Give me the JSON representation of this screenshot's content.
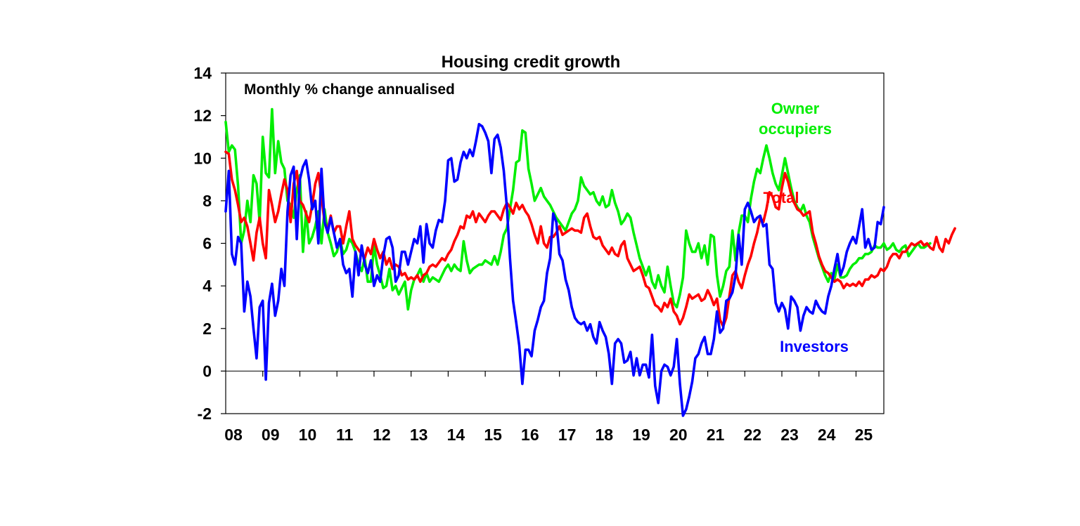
{
  "chart_data": {
    "type": "line",
    "title": "Housing credit growth",
    "subtitle": "Monthly % change annualised",
    "xlabel": "",
    "ylabel": "",
    "x_tick_labels": [
      "08",
      "09",
      "10",
      "11",
      "12",
      "13",
      "14",
      "15",
      "16",
      "17",
      "18",
      "19",
      "20",
      "21",
      "22",
      "23",
      "24",
      "25"
    ],
    "y_tick_labels": [
      "-2",
      "0",
      "2",
      "4",
      "6",
      "8",
      "10",
      "12",
      "14"
    ],
    "y_ticks": [
      -2,
      0,
      2,
      4,
      6,
      8,
      10,
      12,
      14
    ],
    "ylim": [
      -2,
      14
    ],
    "xlim": [
      2008.0,
      2025.75
    ],
    "grid": false,
    "series": [
      {
        "name": "Owner occupiers",
        "label_text": [
          "Owner",
          "occupiers"
        ],
        "color": "#00ee00",
        "x_start": 2008.0,
        "x_step": 0.0833333,
        "values": [
          11.7,
          10.3,
          10.6,
          10.4,
          8.7,
          6.0,
          6.6,
          8.0,
          7.0,
          9.2,
          8.8,
          7.0,
          11.0,
          9.3,
          9.1,
          12.3,
          9.3,
          10.8,
          9.8,
          9.5,
          8.0,
          7.8,
          7.2,
          8.5,
          9.2,
          5.6,
          7.5,
          6.0,
          6.3,
          6.8,
          7.5,
          6.0,
          7.6,
          6.5,
          6.0,
          5.4,
          5.6,
          6.2,
          5.5,
          5.7,
          6.2,
          6.0,
          5.6,
          5.0,
          4.7,
          5.3,
          4.2,
          4.2,
          5.9,
          5.0,
          4.5,
          3.9,
          4.0,
          4.8,
          3.8,
          4.0,
          3.6,
          3.9,
          4.2,
          2.9,
          3.8,
          4.3,
          4.5,
          4.8,
          4.2,
          4.6,
          4.2,
          4.4,
          4.3,
          4.2,
          4.5,
          4.8,
          5.0,
          4.7,
          5.0,
          4.8,
          4.7,
          6.1,
          5.2,
          4.6,
          4.8,
          4.9,
          5.0,
          5.0,
          5.2,
          5.1,
          5.0,
          5.4,
          5.0,
          5.6,
          6.4,
          6.7,
          7.6,
          8.5,
          9.8,
          9.9,
          11.3,
          11.2,
          9.5,
          8.8,
          8.0,
          8.3,
          8.6,
          8.2,
          8.0,
          7.8,
          7.5,
          7.2,
          7.0,
          6.8,
          6.6,
          7.0,
          7.4,
          7.6,
          8.0,
          9.1,
          8.7,
          8.5,
          8.3,
          8.4,
          8.0,
          7.8,
          8.2,
          7.7,
          7.8,
          8.5,
          7.9,
          7.5,
          6.9,
          7.1,
          7.4,
          7.2,
          6.5,
          5.9,
          5.3,
          4.9,
          4.5,
          4.9,
          4.2,
          3.9,
          4.5,
          4.0,
          3.7,
          4.9,
          4.0,
          3.2,
          3.0,
          3.6,
          4.4,
          6.6,
          6.0,
          5.6,
          5.6,
          6.0,
          5.3,
          5.9,
          5.0,
          6.4,
          6.3,
          4.5,
          3.5,
          4.0,
          4.7,
          4.9,
          6.6,
          5.2,
          6.5,
          7.3,
          7.3,
          7.0,
          8.1,
          8.9,
          9.5,
          9.3,
          10.0,
          10.6,
          10.0,
          9.3,
          8.8,
          8.5,
          9.2,
          10.0,
          9.3,
          8.6,
          8.0,
          7.7,
          7.5,
          7.8,
          7.3,
          7.0,
          6.3,
          5.8,
          5.3,
          4.9,
          4.5,
          4.2,
          4.6,
          4.3,
          5.0,
          4.4,
          4.4,
          4.5,
          4.8,
          5.0,
          5.1,
          5.3,
          5.3,
          5.5,
          5.5,
          5.6,
          5.9,
          5.8,
          5.8,
          6.0,
          5.7,
          5.8,
          6.0,
          5.7,
          5.6,
          5.8,
          5.9,
          5.4,
          5.6,
          5.8,
          6.0,
          5.8,
          5.8,
          5.9,
          6.0
        ]
      },
      {
        "name": "Total",
        "label_text": [
          "Total"
        ],
        "color": "#ff0000",
        "x_start": 2008.0,
        "x_step": 0.0833333,
        "values": [
          10.3,
          10.2,
          9.0,
          8.5,
          7.8,
          7.0,
          7.2,
          6.8,
          6.0,
          5.2,
          6.5,
          7.2,
          6.0,
          5.3,
          8.5,
          7.8,
          7.0,
          7.5,
          8.3,
          9.0,
          8.5,
          7.0,
          8.8,
          9.4,
          8.0,
          7.8,
          7.4,
          7.0,
          7.8,
          8.8,
          9.3,
          8.2,
          7.0,
          6.6,
          7.3,
          6.5,
          6.8,
          6.8,
          6.0,
          6.8,
          7.5,
          6.2,
          5.9,
          5.7,
          5.5,
          5.3,
          5.8,
          5.5,
          6.2,
          5.7,
          5.3,
          5.6,
          5.0,
          5.3,
          4.8,
          5.0,
          4.9,
          4.5,
          4.6,
          4.3,
          4.4,
          4.3,
          4.5,
          4.2,
          4.5,
          4.6,
          4.9,
          5.0,
          4.9,
          5.1,
          5.3,
          5.2,
          5.5,
          5.7,
          6.1,
          6.4,
          6.8,
          6.7,
          7.3,
          7.2,
          7.5,
          7.0,
          7.4,
          7.2,
          7.0,
          7.3,
          7.5,
          7.5,
          7.3,
          7.1,
          7.6,
          7.9,
          7.7,
          7.4,
          7.9,
          7.6,
          7.8,
          7.5,
          7.3,
          6.9,
          6.4,
          6.0,
          6.8,
          6.0,
          5.8,
          6.3,
          6.3,
          6.5,
          6.8,
          6.4,
          6.5,
          6.6,
          6.7,
          6.6,
          6.6,
          6.5,
          7.2,
          7.4,
          6.8,
          6.3,
          6.2,
          6.3,
          5.9,
          5.7,
          5.5,
          5.8,
          5.5,
          5.4,
          5.9,
          6.1,
          5.3,
          5.0,
          4.7,
          4.8,
          4.9,
          4.5,
          4.0,
          3.9,
          3.5,
          3.1,
          3.0,
          2.8,
          3.2,
          3.0,
          3.4,
          2.8,
          2.6,
          2.2,
          2.5,
          3.0,
          3.6,
          3.4,
          3.5,
          3.6,
          3.3,
          3.4,
          3.8,
          3.5,
          3.1,
          3.4,
          2.4,
          2.1,
          2.5,
          3.5,
          4.5,
          4.7,
          4.2,
          3.9,
          4.5,
          5.0,
          5.4,
          6.0,
          6.5,
          7.2,
          7.0,
          7.6,
          8.4,
          8.2,
          7.7,
          7.6,
          8.6,
          9.3,
          8.9,
          8.3,
          7.9,
          7.6,
          7.5,
          7.3,
          7.4,
          7.5,
          6.5,
          6.0,
          5.4,
          5.0,
          4.7,
          4.6,
          4.4,
          4.2,
          4.3,
          4.2,
          3.9,
          4.1,
          4.0,
          4.1,
          4.0,
          4.2,
          4.0,
          4.3,
          4.3,
          4.5,
          4.4,
          4.5,
          4.8,
          4.7,
          4.9,
          5.3,
          5.5,
          5.5,
          5.3,
          5.6,
          5.6,
          5.8,
          6.0,
          5.9,
          6.0,
          6.1,
          5.9,
          6.0,
          5.8,
          5.7,
          6.3,
          5.8,
          5.6,
          6.2,
          6.0,
          6.4,
          6.7
        ]
      },
      {
        "name": "Investors",
        "label_text": [
          "Investors"
        ],
        "color": "#0000ff",
        "x_start": 2008.0,
        "x_step": 0.0833333,
        "values": [
          7.5,
          9.4,
          5.5,
          5.0,
          6.3,
          6.0,
          2.8,
          4.2,
          3.5,
          2.0,
          0.6,
          3.0,
          3.3,
          -0.4,
          3.2,
          4.1,
          2.6,
          3.3,
          4.8,
          4.0,
          7.5,
          9.2,
          9.6,
          6.2,
          9.0,
          9.6,
          9.9,
          9.0,
          7.6,
          8.0,
          6.0,
          9.5,
          7.0,
          6.5,
          7.2,
          6.5,
          5.8,
          6.2,
          5.0,
          4.6,
          4.8,
          3.5,
          5.6,
          4.5,
          5.9,
          5.0,
          4.6,
          5.2,
          4.0,
          4.5,
          4.2,
          5.4,
          6.2,
          6.3,
          5.8,
          4.2,
          4.5,
          5.6,
          5.6,
          5.0,
          5.6,
          6.2,
          6.0,
          6.8,
          5.1,
          6.9,
          6.0,
          5.8,
          6.6,
          7.1,
          7.0,
          8.0,
          9.9,
          10.0,
          8.9,
          9.0,
          9.8,
          10.3,
          10.0,
          10.4,
          10.1,
          10.8,
          11.6,
          11.5,
          11.2,
          10.8,
          9.3,
          10.9,
          11.1,
          10.5,
          9.4,
          7.7,
          5.3,
          3.3,
          2.3,
          1.2,
          -0.6,
          1.0,
          1.0,
          0.7,
          1.9,
          2.4,
          3.0,
          3.3,
          4.6,
          5.3,
          7.4,
          7.0,
          5.5,
          5.2,
          4.3,
          3.8,
          3.0,
          2.5,
          2.3,
          2.2,
          2.3,
          1.9,
          2.2,
          1.6,
          1.3,
          2.3,
          1.9,
          1.6,
          0.8,
          -0.6,
          1.3,
          1.5,
          1.3,
          0.4,
          0.5,
          0.9,
          -0.2,
          0.6,
          -0.2,
          0.3,
          0.3,
          -0.3,
          1.7,
          -0.7,
          -1.5,
          0.0,
          0.3,
          0.2,
          -0.2,
          0.2,
          1.5,
          -0.6,
          -2.1,
          -1.8,
          -1.2,
          -0.5,
          0.6,
          0.8,
          1.3,
          1.6,
          0.8,
          0.8,
          1.5,
          2.8,
          1.8,
          2.0,
          3.3,
          3.4,
          3.7,
          4.5,
          6.4,
          5.0,
          7.6,
          7.9,
          7.5,
          7.0,
          7.2,
          7.3,
          6.8,
          6.9,
          5.0,
          4.8,
          3.2,
          2.8,
          3.2,
          2.9,
          2.0,
          3.5,
          3.3,
          3.0,
          1.9,
          2.6,
          3.0,
          2.8,
          2.7,
          3.3,
          3.0,
          2.8,
          2.7,
          3.5,
          4.0,
          4.8,
          5.5,
          4.5,
          4.9,
          5.6,
          6.0,
          6.3,
          6.0,
          6.8,
          7.6,
          5.8,
          6.2,
          5.7,
          5.8,
          7.0,
          6.9,
          7.7
        ]
      }
    ]
  }
}
